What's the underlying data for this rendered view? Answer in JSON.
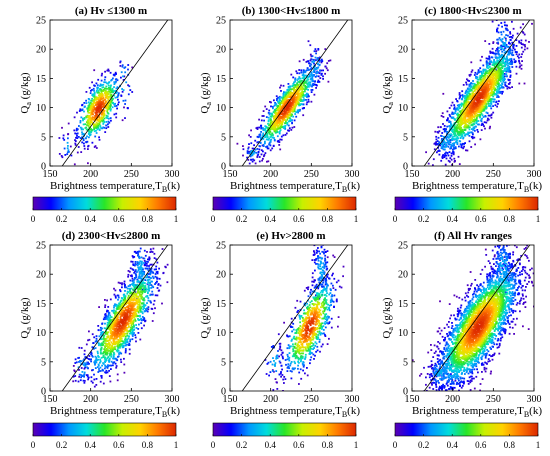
{
  "figure": {
    "colormap": [
      "#5a00b4",
      "#0000ff",
      "#0096ff",
      "#00dcdc",
      "#28e628",
      "#c8f000",
      "#ffd200",
      "#ff7800",
      "#dc2800"
    ]
  },
  "chart_data": [
    {
      "type": "scatter",
      "title": "(a) Hv ≤1300 m",
      "xlabel": "Brightness temperature,T",
      "xlabel_sub": "B",
      "xlabel_unit": "(k)",
      "ylabel": "Q",
      "ylabel_sub": "a",
      "ylabel_unit": " (g/kg)",
      "xlim": [
        150,
        300
      ],
      "ylim": [
        0,
        25
      ],
      "xticks": [
        150,
        200,
        250,
        300
      ],
      "yticks": [
        0,
        5,
        10,
        15,
        20,
        25
      ],
      "fit_line": {
        "x": [
          165,
          300
        ],
        "y": [
          0,
          26
        ]
      },
      "cluster": {
        "center": [
          210,
          9.8
        ],
        "spread": [
          13,
          2.8
        ],
        "count": 700,
        "tail": [
          [
            172,
            3.5,
            4,
            1.2,
            20
          ],
          [
            240,
            14,
            6,
            3,
            30
          ]
        ]
      },
      "colorbar": {
        "ticks": [
          0,
          0.2,
          0.4,
          0.6,
          0.8,
          1
        ]
      }
    },
    {
      "type": "scatter",
      "title": "(b) 1300<Hv≤1800 m",
      "xlabel": "Brightness temperature,T",
      "xlabel_sub": "B",
      "xlabel_unit": "(k)",
      "ylabel": "Q",
      "ylabel_sub": "a",
      "ylabel_unit": " (g/kg)",
      "xlim": [
        150,
        300
      ],
      "ylim": [
        0,
        25
      ],
      "xticks": [
        150,
        200,
        250,
        300
      ],
      "yticks": [
        0,
        5,
        10,
        15,
        20,
        25
      ],
      "fit_line": {
        "x": [
          165,
          300
        ],
        "y": [
          0,
          26
        ]
      },
      "cluster": {
        "center": [
          220,
          10
        ],
        "spread": [
          18,
          3.5
        ],
        "count": 1100,
        "corr": 0.85,
        "tail": [
          [
            178,
            2.5,
            5,
            1,
            40
          ],
          [
            255,
            17,
            6,
            2,
            60
          ]
        ]
      },
      "colorbar": {
        "ticks": [
          0,
          0.2,
          0.4,
          0.6,
          0.8,
          1
        ]
      }
    },
    {
      "type": "scatter",
      "title": "(c) 1800<Hv≤2300 m",
      "xlabel": "Brightness temperature,T",
      "xlabel_sub": "B",
      "xlabel_unit": "(k)",
      "ylabel": "Q",
      "ylabel_sub": "a",
      "ylabel_unit": " (g/kg)",
      "xlim": [
        150,
        300
      ],
      "ylim": [
        0,
        25
      ],
      "xticks": [
        150,
        200,
        250,
        300
      ],
      "yticks": [
        0,
        5,
        10,
        15,
        20,
        25
      ],
      "fit_line": {
        "x": [
          165,
          300
        ],
        "y": [
          0,
          26
        ]
      },
      "cluster": {
        "center": [
          232,
          11.5
        ],
        "spread": [
          22,
          4.5
        ],
        "count": 1900,
        "corr": 0.85,
        "tail": [
          [
            190,
            4,
            6,
            1.5,
            60
          ],
          [
            262,
            20,
            7,
            3,
            120
          ]
        ]
      },
      "colorbar": {
        "ticks": [
          0,
          0.2,
          0.4,
          0.6,
          0.8,
          1
        ]
      }
    },
    {
      "type": "scatter",
      "title": "(d) 2300<Hv≤2800 m",
      "xlabel": "Brightness temperature,T",
      "xlabel_sub": "B",
      "xlabel_unit": "(k)",
      "ylabel": "Q",
      "ylabel_sub": "a",
      "ylabel_unit": " (g/kg)",
      "xlim": [
        150,
        300
      ],
      "ylim": [
        0,
        25
      ],
      "xticks": [
        150,
        200,
        250,
        300
      ],
      "yticks": [
        0,
        5,
        10,
        15,
        20,
        25
      ],
      "fit_line": {
        "x": [
          165,
          300
        ],
        "y": [
          0,
          26
        ]
      },
      "cluster": {
        "center": [
          240,
          12
        ],
        "spread": [
          20,
          4.5
        ],
        "count": 1500,
        "corr": 0.8,
        "tail": [
          [
            190,
            4,
            6,
            1.5,
            50
          ],
          [
            262,
            21,
            6,
            2.5,
            150
          ]
        ]
      },
      "colorbar": {
        "ticks": [
          0,
          0.2,
          0.4,
          0.6,
          0.8,
          1
        ]
      }
    },
    {
      "type": "scatter",
      "title": "(e) Hv>2800 m",
      "xlabel": "Brightness temperature,T",
      "xlabel_sub": "B",
      "xlabel_unit": "(k)",
      "ylabel": "Q",
      "ylabel_sub": "a",
      "ylabel_unit": " (g/kg)",
      "xlim": [
        150,
        300
      ],
      "ylim": [
        0,
        25
      ],
      "xticks": [
        150,
        200,
        250,
        300
      ],
      "yticks": [
        0,
        5,
        10,
        15,
        20,
        25
      ],
      "fit_line": {
        "x": [
          165,
          300
        ],
        "y": [
          0,
          26
        ]
      },
      "cluster": {
        "center": [
          248,
          11
        ],
        "spread": [
          15,
          4
        ],
        "count": 800,
        "corr": 0.7,
        "tail": [
          [
            205,
            5,
            6,
            2,
            40
          ],
          [
            262,
            21,
            5,
            2.5,
            120
          ]
        ]
      },
      "colorbar": {
        "ticks": [
          0,
          0.2,
          0.4,
          0.6,
          0.8,
          1
        ]
      }
    },
    {
      "type": "scatter",
      "title": "(f) All Hv ranges",
      "xlabel": "Brightness temperature,T",
      "xlabel_sub": "B",
      "xlabel_unit": "(k)",
      "ylabel": "Q",
      "ylabel_sub": "a",
      "ylabel_unit": " (g/kg)",
      "xlim": [
        150,
        300
      ],
      "ylim": [
        0,
        25
      ],
      "xticks": [
        150,
        200,
        250,
        300
      ],
      "yticks": [
        0,
        5,
        10,
        15,
        20,
        25
      ],
      "fit_line": {
        "x": [
          165,
          300
        ],
        "y": [
          0,
          26
        ]
      },
      "cluster": {
        "center": [
          232,
          11
        ],
        "spread": [
          24,
          5
        ],
        "count": 3200,
        "corr": 0.75,
        "tail": [
          [
            185,
            3,
            8,
            1.5,
            120
          ],
          [
            262,
            21,
            7,
            3,
            200
          ]
        ]
      },
      "colorbar": {
        "ticks": [
          0,
          0.2,
          0.4,
          0.6,
          0.8,
          1
        ]
      }
    }
  ]
}
